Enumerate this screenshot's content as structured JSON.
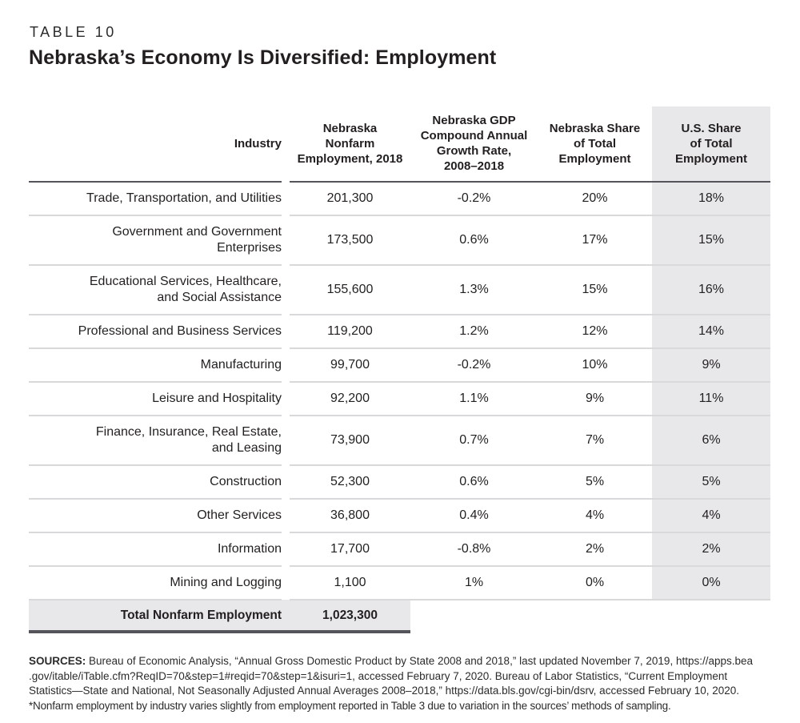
{
  "page": {
    "eyebrow": "TABLE 10",
    "title": "Nebraska’s Economy Is Diversified: Employment"
  },
  "colors": {
    "text": "#231f20",
    "dark_rule": "#54555a",
    "light_rule": "#d9d9db",
    "shade_fill": "#e8e8ea"
  },
  "table": {
    "columns": {
      "industry": "Industry",
      "employment": "Nebraska\nNonfarm\nEmployment, 2018",
      "growth": "Nebraska GDP\nCompound Annual\nGrowth Rate,\n2008–2018",
      "ne_share": "Nebraska Share\nof Total\nEmployment",
      "us_share": "U.S. Share\nof Total\nEmployment"
    },
    "rows": [
      {
        "industry": "Trade, Transportation, and Utilities",
        "employment": "201,300",
        "growth": "-0.2%",
        "ne_share": "20%",
        "us_share": "18%"
      },
      {
        "industry": "Government and Government\nEnterprises",
        "employment": "173,500",
        "growth": "0.6%",
        "ne_share": "17%",
        "us_share": "15%"
      },
      {
        "industry": "Educational Services, Healthcare,\nand Social Assistance",
        "employment": "155,600",
        "growth": "1.3%",
        "ne_share": "15%",
        "us_share": "16%"
      },
      {
        "industry": "Professional and Business Services",
        "employment": "119,200",
        "growth": "1.2%",
        "ne_share": "12%",
        "us_share": "14%"
      },
      {
        "industry": "Manufacturing",
        "employment": "99,700",
        "growth": "-0.2%",
        "ne_share": "10%",
        "us_share": "9%"
      },
      {
        "industry": "Leisure and Hospitality",
        "employment": "92,200",
        "growth": "1.1%",
        "ne_share": "9%",
        "us_share": "11%"
      },
      {
        "industry": "Finance, Insurance, Real Estate,\nand Leasing",
        "employment": "73,900",
        "growth": "0.7%",
        "ne_share": "7%",
        "us_share": "6%"
      },
      {
        "industry": "Construction",
        "employment": "52,300",
        "growth": "0.6%",
        "ne_share": "5%",
        "us_share": "5%"
      },
      {
        "industry": "Other Services",
        "employment": "36,800",
        "growth": "0.4%",
        "ne_share": "4%",
        "us_share": "4%"
      },
      {
        "industry": "Information",
        "employment": "17,700",
        "growth": "-0.8%",
        "ne_share": "2%",
        "us_share": "2%"
      },
      {
        "industry": "Mining and Logging",
        "employment": "1,100",
        "growth": "1%",
        "ne_share": "0%",
        "us_share": "0%"
      }
    ],
    "total": {
      "label": "Total Nonfarm Employment",
      "value": "1,023,300"
    }
  },
  "footer": {
    "sources_label": "SOURCES:",
    "lines": [
      "Bureau of Economic Analysis, “Annual Gross Domestic Product by State 2008 and 2018,” last updated November 7, 2019, https://apps.bea",
      ".gov/itable/iTable.cfm?ReqID=70&step=1#reqid=70&step=1&isuri=1, accessed February 7, 2020. Bureau of Labor Statistics, “Current Employment",
      "Statistics—State and National, Not Seasonally Adjusted Annual Averages 2008–2018,” https://data.bls.gov/cgi-bin/dsrv, accessed February 10, 2020.",
      "*Nonfarm employment by industry varies slightly from employment reported in Table 3 due to variation in the sources’ methods of sampling."
    ]
  }
}
